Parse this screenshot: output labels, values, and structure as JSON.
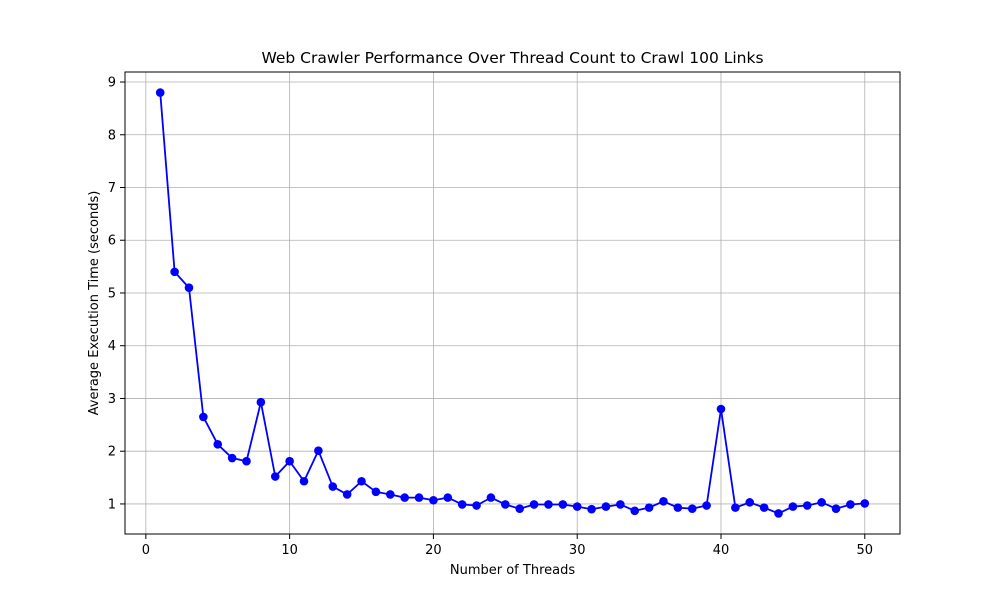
{
  "chart_data": {
    "type": "line",
    "title": "Web Crawler Performance Over Thread Count to Crawl 100 Links",
    "xlabel": "Number of Threads",
    "ylabel": "Average Execution Time (seconds)",
    "xlim": [
      -1.45,
      52.45
    ],
    "ylim": [
      0.43,
      9.19
    ],
    "xticks": [
      0,
      10,
      20,
      30,
      40,
      50
    ],
    "yticks": [
      1,
      2,
      3,
      4,
      5,
      6,
      7,
      8,
      9
    ],
    "grid": true,
    "series": [
      {
        "color": "#0000ff",
        "marker": "circle",
        "x": [
          1,
          2,
          3,
          4,
          5,
          6,
          7,
          8,
          9,
          10,
          11,
          12,
          13,
          14,
          15,
          16,
          17,
          18,
          19,
          20,
          21,
          22,
          23,
          24,
          25,
          26,
          27,
          28,
          29,
          30,
          31,
          32,
          33,
          34,
          35,
          36,
          37,
          38,
          39,
          40,
          41,
          42,
          43,
          44,
          45,
          46,
          47,
          48,
          49,
          50
        ],
        "values": [
          8.8,
          5.4,
          5.1,
          2.65,
          2.13,
          1.87,
          1.81,
          2.93,
          1.52,
          1.81,
          1.43,
          2.01,
          1.33,
          1.18,
          1.43,
          1.23,
          1.18,
          1.12,
          1.12,
          1.07,
          1.12,
          0.99,
          0.97,
          1.12,
          0.99,
          0.91,
          0.99,
          0.99,
          0.99,
          0.95,
          0.9,
          0.95,
          0.99,
          0.87,
          0.93,
          1.05,
          0.93,
          0.91,
          0.97,
          2.8,
          0.93,
          1.03,
          0.93,
          0.82,
          0.95,
          0.97,
          1.03,
          0.91,
          0.99,
          1.01
        ]
      }
    ]
  }
}
